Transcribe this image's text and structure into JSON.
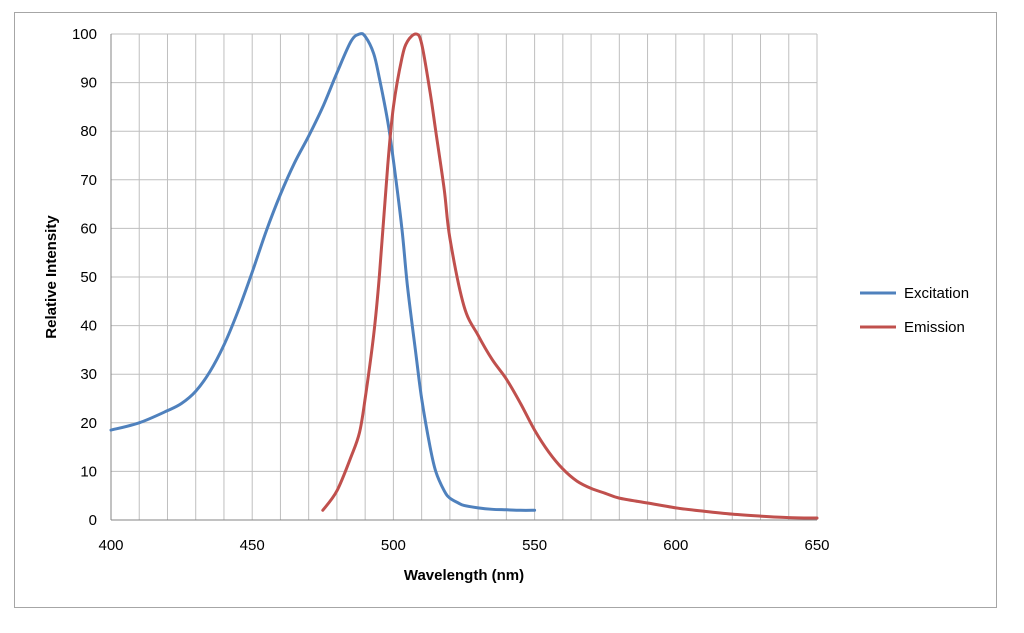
{
  "chart_data": {
    "type": "line",
    "title": "",
    "xlabel": "Wavelength (nm)",
    "ylabel": "Relative Intensity",
    "xlim": [
      400,
      650
    ],
    "ylim": [
      0,
      100
    ],
    "x_ticks": [
      "400",
      "450",
      "500",
      "550",
      "600",
      "650"
    ],
    "y_ticks": [
      "0",
      "10",
      "20",
      "30",
      "40",
      "50",
      "60",
      "70",
      "80",
      "90",
      "100"
    ],
    "x_minor_step": 10,
    "y_major_step": 10,
    "grid": true,
    "legend_position": "right",
    "series": [
      {
        "name": "Excitation",
        "color": "#4f81bd",
        "x": [
          400,
          410,
          420,
          425,
          430,
          435,
          440,
          445,
          450,
          455,
          460,
          465,
          470,
          475,
          480,
          485,
          488,
          490,
          493,
          495,
          498,
          500,
          503,
          505,
          508,
          510,
          513,
          515,
          518,
          520,
          523,
          525,
          530,
          535,
          540,
          545,
          550
        ],
        "y": [
          18.5,
          20,
          22.5,
          24,
          26.5,
          30.5,
          36,
          43,
          51,
          59.5,
          67,
          73.5,
          79,
          85,
          92,
          98.5,
          100,
          99.5,
          96,
          91,
          82,
          74,
          60,
          48,
          34,
          25,
          15,
          10,
          6,
          4.5,
          3.5,
          3,
          2.5,
          2.2,
          2.1,
          2,
          2
        ]
      },
      {
        "name": "Emission",
        "color": "#c0504d",
        "x": [
          475,
          480,
          485,
          488,
          490,
          493,
          495,
          498,
          500,
          503,
          505,
          508,
          510,
          513,
          515,
          518,
          520,
          525,
          530,
          535,
          540,
          545,
          550,
          555,
          560,
          565,
          570,
          575,
          580,
          590,
          600,
          610,
          620,
          630,
          640,
          650
        ],
        "y": [
          2,
          6,
          13,
          18,
          25,
          38,
          50,
          73,
          85,
          95,
          98.5,
          100,
          98,
          88,
          80,
          68,
          58,
          44,
          38,
          33,
          29,
          24,
          18.5,
          14,
          10.5,
          8,
          6.5,
          5.5,
          4.5,
          3.5,
          2.5,
          1.8,
          1.2,
          0.8,
          0.5,
          0.4
        ]
      }
    ]
  }
}
